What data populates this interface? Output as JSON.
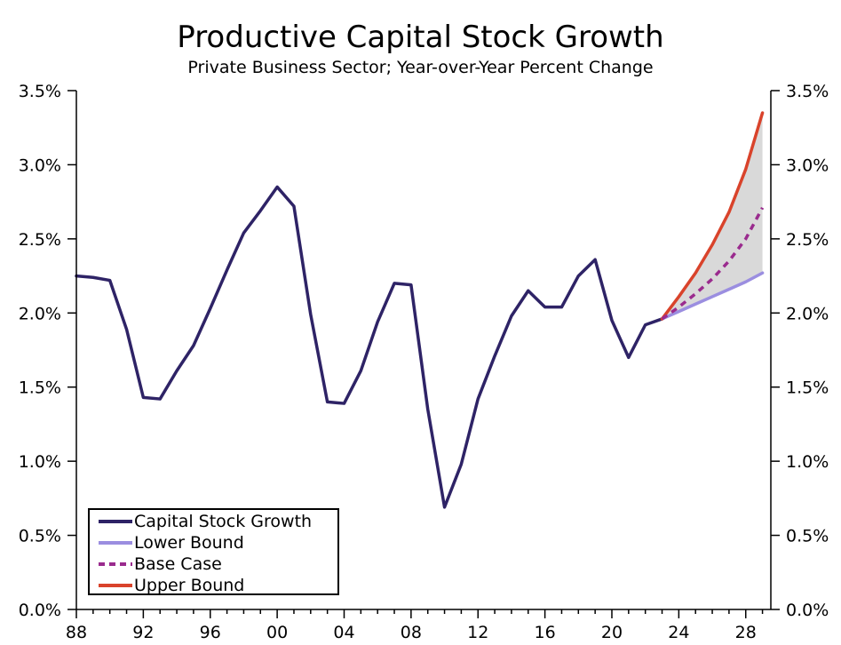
{
  "title": "Productive Capital Stock Growth",
  "subtitle": "Private Business Sector; Year-over-Year Percent Change",
  "colors": {
    "capital": "#2e2366",
    "lower": "#9b8ee0",
    "base": "#9a2b8e",
    "upper": "#d9432b",
    "band": "#d9d9d9"
  },
  "chart_data": {
    "type": "line",
    "x_ticks": [
      "88",
      "92",
      "96",
      "00",
      "04",
      "08",
      "12",
      "16",
      "20",
      "24",
      "28"
    ],
    "y_ticks": [
      "0.0%",
      "0.5%",
      "1.0%",
      "1.5%",
      "2.0%",
      "2.5%",
      "3.0%",
      "3.5%"
    ],
    "xlim": [
      1988,
      2029.5
    ],
    "ylim": [
      0,
      3.5
    ],
    "grid": false,
    "legend_position": "bottom-left",
    "series": [
      {
        "name": "Capital Stock Growth",
        "style": "solid",
        "x": [
          1988,
          1989,
          1990,
          1991,
          1992,
          1993,
          1994,
          1995,
          1996,
          1997,
          1998,
          1999,
          2000,
          2001,
          2002,
          2003,
          2004,
          2005,
          2006,
          2007,
          2008,
          2009,
          2010,
          2011,
          2012,
          2013,
          2014,
          2015,
          2016,
          2017,
          2018,
          2019,
          2020,
          2021,
          2022,
          2023
        ],
        "y": [
          2.25,
          2.24,
          2.22,
          1.89,
          1.43,
          1.42,
          1.61,
          1.78,
          2.03,
          2.29,
          2.54,
          2.69,
          2.85,
          2.72,
          1.99,
          1.4,
          1.39,
          1.61,
          1.94,
          2.2,
          2.19,
          1.35,
          0.69,
          0.98,
          1.42,
          1.71,
          1.98,
          2.15,
          2.04,
          2.04,
          2.25,
          2.36,
          1.95,
          1.7,
          1.92,
          1.96
        ]
      },
      {
        "name": "Lower Bound",
        "style": "solid",
        "x": [
          2023,
          2024,
          2025,
          2026,
          2027,
          2028,
          2029
        ],
        "y": [
          1.96,
          2.01,
          2.06,
          2.11,
          2.16,
          2.21,
          2.27
        ]
      },
      {
        "name": "Base Case",
        "style": "dashed",
        "x": [
          2023,
          2024,
          2025,
          2026,
          2027,
          2028,
          2029
        ],
        "y": [
          1.96,
          2.04,
          2.13,
          2.23,
          2.35,
          2.5,
          2.71
        ]
      },
      {
        "name": "Upper Bound",
        "style": "solid",
        "x": [
          2023,
          2024,
          2025,
          2026,
          2027,
          2028,
          2029
        ],
        "y": [
          1.96,
          2.11,
          2.27,
          2.46,
          2.68,
          2.97,
          3.35
        ]
      }
    ]
  }
}
